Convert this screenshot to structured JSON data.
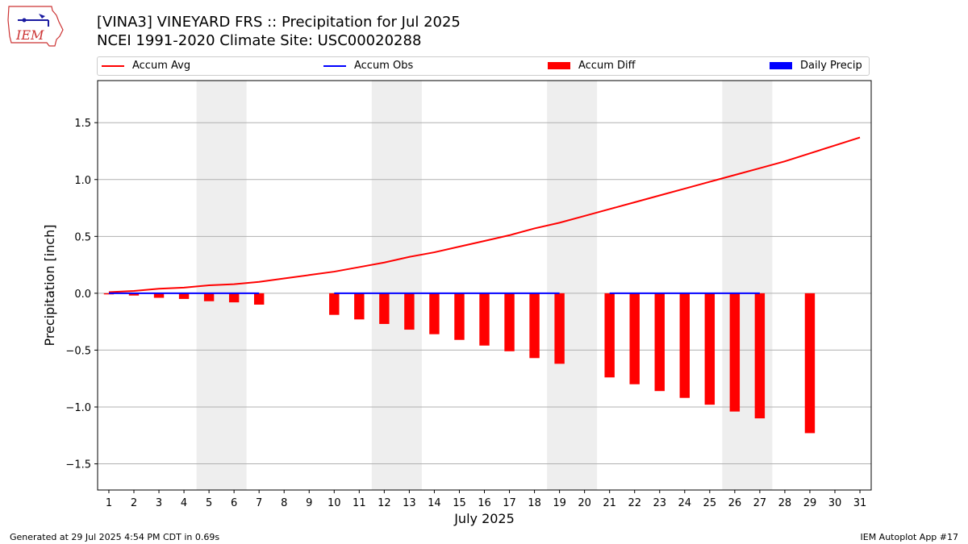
{
  "header": {
    "title_line1": "[VINA3] VINEYARD FRS :: Precipitation for Jul 2025",
    "title_line2": "NCEI 1991-2020 Climate Site: USC00020288",
    "logo_text": "IEM"
  },
  "footer": {
    "generated": "Generated at 29 Jul 2025 4:54 PM CDT in 0.69s",
    "app": "IEM Autoplot App #17"
  },
  "colors": {
    "accum_avg": "#ff0000",
    "accum_obs": "#0000ff",
    "accum_diff": "#ff0000",
    "daily_precip": "#0000ff",
    "weekend_band": "#eeeeee",
    "grid": "#b0b0b0"
  },
  "chart_data": {
    "type": "bar",
    "xlabel": "July 2025",
    "ylabel": "Precipitation [inch]",
    "ylim": [
      -1.73,
      1.87
    ],
    "yticks": [
      -1.5,
      -1.0,
      -0.5,
      0.0,
      0.5,
      1.0,
      1.5
    ],
    "ytick_labels": [
      "−1.5",
      "−1.0",
      "−0.5",
      "0.0",
      "0.5",
      "1.0",
      "1.5"
    ],
    "x": [
      1,
      2,
      3,
      4,
      5,
      6,
      7,
      8,
      9,
      10,
      11,
      12,
      13,
      14,
      15,
      16,
      17,
      18,
      19,
      20,
      21,
      22,
      23,
      24,
      25,
      26,
      27,
      28,
      29,
      30,
      31
    ],
    "grid": "horizontal",
    "legend_position": "top",
    "legend": [
      "Accum Avg",
      "Accum Obs",
      "Accum Diff",
      "Daily Precip"
    ],
    "weekend_bands": [
      [
        4.5,
        6.5
      ],
      [
        11.5,
        13.5
      ],
      [
        18.5,
        20.5
      ],
      [
        25.5,
        27.5
      ]
    ],
    "series": [
      {
        "name": "Accum Avg",
        "kind": "line",
        "x": [
          1,
          2,
          3,
          4,
          5,
          6,
          7,
          8,
          9,
          10,
          11,
          12,
          13,
          14,
          15,
          16,
          17,
          18,
          19,
          20,
          21,
          22,
          23,
          24,
          25,
          26,
          27,
          28,
          29,
          30,
          31
        ],
        "values": [
          0.01,
          0.02,
          0.04,
          0.05,
          0.07,
          0.08,
          0.1,
          0.13,
          0.16,
          0.19,
          0.23,
          0.27,
          0.32,
          0.36,
          0.41,
          0.46,
          0.51,
          0.57,
          0.62,
          0.68,
          0.74,
          0.8,
          0.86,
          0.92,
          0.98,
          1.04,
          1.1,
          1.16,
          1.23,
          1.3,
          1.37
        ]
      },
      {
        "name": "Accum Obs",
        "kind": "line",
        "segments": [
          {
            "x": [
              1,
              2,
              3,
              4,
              5,
              6,
              7
            ],
            "values": [
              0,
              0,
              0,
              0,
              0,
              0,
              0
            ]
          },
          {
            "x": [
              10,
              11,
              12,
              13,
              14,
              15,
              16,
              17,
              18,
              19
            ],
            "values": [
              0,
              0,
              0,
              0,
              0,
              0,
              0,
              0,
              0,
              0
            ]
          },
          {
            "x": [
              21,
              22,
              23,
              24,
              25,
              26,
              27
            ],
            "values": [
              0,
              0,
              0,
              0,
              0,
              0,
              0
            ]
          }
        ]
      },
      {
        "name": "Accum Diff",
        "kind": "bar",
        "x": [
          1,
          2,
          3,
          4,
          5,
          6,
          7,
          10,
          11,
          12,
          13,
          14,
          15,
          16,
          17,
          18,
          19,
          21,
          22,
          23,
          24,
          25,
          26,
          27,
          29
        ],
        "values": [
          -0.01,
          -0.02,
          -0.04,
          -0.05,
          -0.07,
          -0.08,
          -0.1,
          -0.19,
          -0.23,
          -0.27,
          -0.32,
          -0.36,
          -0.41,
          -0.46,
          -0.51,
          -0.57,
          -0.62,
          -0.74,
          -0.8,
          -0.86,
          -0.92,
          -0.98,
          -1.04,
          -1.1,
          -1.23
        ]
      },
      {
        "name": "Daily Precip",
        "kind": "bar",
        "x": [
          1,
          2,
          3,
          4,
          5,
          6,
          7,
          10,
          11,
          12,
          13,
          14,
          15,
          16,
          17,
          18,
          19,
          21,
          22,
          23,
          24,
          25,
          26,
          27
        ],
        "values": [
          0,
          0,
          0,
          0,
          0,
          0,
          0,
          0,
          0,
          0,
          0,
          0,
          0,
          0,
          0,
          0,
          0,
          0,
          0,
          0,
          0,
          0,
          0,
          0
        ]
      }
    ]
  }
}
